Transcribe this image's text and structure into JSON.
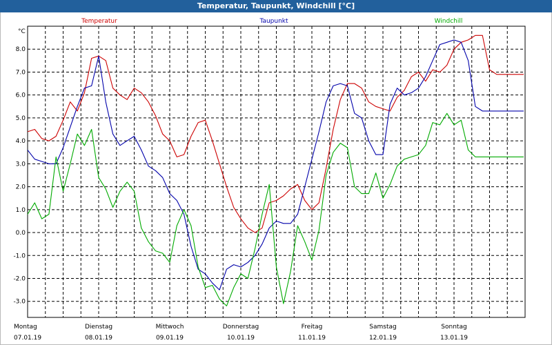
{
  "chart_data": {
    "type": "line",
    "title": "Temperatur, Taupunkt, Windchill [°C]",
    "ylabel": "°C",
    "ylim": [
      -3.7,
      9.0
    ],
    "y_ticks": [
      "8.0",
      "7.0",
      "6.0",
      "5.0",
      "4.0",
      "3.0",
      "2.0",
      "1.0",
      "0.0",
      "-1.0",
      "-2.0",
      "-3.0"
    ],
    "xlim": [
      0,
      7
    ],
    "grid": true,
    "days": [
      {
        "name": "Montag",
        "date": "07.01.19"
      },
      {
        "name": "Dienstag",
        "date": "08.01.19"
      },
      {
        "name": "Mittwoch",
        "date": "09.01.19"
      },
      {
        "name": "Donnerstag",
        "date": "10.01.19"
      },
      {
        "name": "Freitag",
        "date": "11.01.19"
      },
      {
        "name": "Samstag",
        "date": "12.01.19"
      },
      {
        "name": "Sonntag",
        "date": "13.01.19"
      }
    ],
    "series": [
      {
        "name": "Temperatur",
        "color": "#cc0000",
        "x": [
          0,
          0.1,
          0.2,
          0.3,
          0.4,
          0.5,
          0.6,
          0.7,
          0.8,
          0.9,
          1.0,
          1.1,
          1.2,
          1.3,
          1.4,
          1.5,
          1.6,
          1.7,
          1.8,
          1.9,
          2.0,
          2.1,
          2.2,
          2.3,
          2.4,
          2.5,
          2.6,
          2.7,
          2.8,
          2.9,
          3.0,
          3.1,
          3.2,
          3.3,
          3.4,
          3.5,
          3.6,
          3.7,
          3.8,
          3.9,
          4.0,
          4.1,
          4.2,
          4.3,
          4.4,
          4.5,
          4.6,
          4.7,
          4.8,
          4.9,
          5.0,
          5.1,
          5.2,
          5.3,
          5.4,
          5.5,
          5.6,
          5.7,
          5.8,
          5.9,
          6.0,
          6.1,
          6.2,
          6.3,
          6.4,
          6.5,
          6.6,
          6.7,
          6.8,
          6.9,
          6.98
        ],
        "values": [
          4.4,
          4.5,
          4.1,
          4.0,
          4.2,
          4.9,
          5.7,
          5.3,
          6.1,
          7.6,
          7.7,
          7.5,
          6.3,
          6.0,
          5.8,
          6.3,
          6.1,
          5.7,
          5.1,
          4.3,
          4.0,
          3.3,
          3.4,
          4.2,
          4.8,
          4.9,
          4.0,
          3.0,
          2.0,
          1.1,
          0.6,
          0.2,
          0.0,
          0.2,
          1.3,
          1.4,
          1.6,
          1.9,
          2.1,
          1.4,
          1.0,
          1.3,
          2.8,
          4.5,
          5.8,
          6.5,
          6.5,
          6.3,
          5.7,
          5.5,
          5.4,
          5.3,
          5.9,
          6.2,
          6.8,
          7.0,
          6.6,
          7.1,
          7.0,
          7.3,
          8.0,
          8.3,
          8.4,
          8.6,
          8.6,
          7.1,
          6.9,
          6.9,
          6.9,
          6.9,
          6.9
        ]
      },
      {
        "name": "Taupunkt",
        "color": "#0000aa",
        "x": [
          0,
          0.1,
          0.2,
          0.3,
          0.4,
          0.5,
          0.6,
          0.7,
          0.8,
          0.9,
          1.0,
          1.1,
          1.2,
          1.3,
          1.4,
          1.5,
          1.6,
          1.7,
          1.8,
          1.9,
          2.0,
          2.1,
          2.2,
          2.3,
          2.4,
          2.5,
          2.6,
          2.7,
          2.8,
          2.9,
          3.0,
          3.1,
          3.2,
          3.3,
          3.4,
          3.5,
          3.6,
          3.7,
          3.8,
          3.9,
          4.0,
          4.1,
          4.2,
          4.3,
          4.4,
          4.5,
          4.6,
          4.7,
          4.8,
          4.9,
          5.0,
          5.1,
          5.2,
          5.3,
          5.4,
          5.5,
          5.6,
          5.7,
          5.8,
          5.9,
          6.0,
          6.1,
          6.2,
          6.3,
          6.4,
          6.5,
          6.6,
          6.7,
          6.8,
          6.9,
          6.98
        ],
        "values": [
          3.6,
          3.2,
          3.1,
          3.0,
          3.0,
          3.7,
          4.6,
          5.5,
          6.3,
          6.4,
          7.7,
          5.7,
          4.3,
          3.8,
          4.0,
          4.2,
          3.6,
          2.9,
          2.7,
          2.4,
          1.7,
          1.4,
          0.8,
          -0.6,
          -1.6,
          -1.8,
          -2.2,
          -2.5,
          -1.6,
          -1.4,
          -1.5,
          -1.3,
          -1.0,
          -0.5,
          0.2,
          0.5,
          0.4,
          0.4,
          0.8,
          2.0,
          3.2,
          4.4,
          5.7,
          6.4,
          6.5,
          6.4,
          5.2,
          5.0,
          4.0,
          3.4,
          3.4,
          5.6,
          6.3,
          6.0,
          6.1,
          6.3,
          6.8,
          7.5,
          8.2,
          8.3,
          8.4,
          8.3,
          7.5,
          5.5,
          5.3,
          5.3,
          5.3,
          5.3,
          5.3,
          5.3,
          5.3
        ]
      },
      {
        "name": "Windchill",
        "color": "#00aa00",
        "x": [
          0,
          0.1,
          0.2,
          0.3,
          0.4,
          0.5,
          0.6,
          0.7,
          0.8,
          0.9,
          1.0,
          1.1,
          1.2,
          1.3,
          1.4,
          1.5,
          1.6,
          1.7,
          1.8,
          1.9,
          2.0,
          2.1,
          2.2,
          2.3,
          2.4,
          2.5,
          2.6,
          2.7,
          2.8,
          2.9,
          3.0,
          3.1,
          3.2,
          3.3,
          3.4,
          3.5,
          3.6,
          3.7,
          3.8,
          3.9,
          4.0,
          4.1,
          4.2,
          4.3,
          4.4,
          4.5,
          4.6,
          4.7,
          4.8,
          4.9,
          5.0,
          5.1,
          5.2,
          5.3,
          5.4,
          5.5,
          5.6,
          5.7,
          5.8,
          5.9,
          6.0,
          6.1,
          6.2,
          6.3,
          6.4,
          6.5,
          6.6,
          6.7,
          6.8,
          6.9,
          6.98
        ],
        "values": [
          0.8,
          1.3,
          0.6,
          0.8,
          3.3,
          1.8,
          3.0,
          4.3,
          3.8,
          4.5,
          2.4,
          1.9,
          1.1,
          1.8,
          2.2,
          1.8,
          0.2,
          -0.4,
          -0.8,
          -0.9,
          -1.3,
          0.3,
          1.0,
          0.3,
          -1.5,
          -2.4,
          -2.3,
          -2.9,
          -3.2,
          -2.4,
          -1.8,
          -2.0,
          -0.7,
          0.8,
          2.1,
          -1.5,
          -3.1,
          -1.7,
          0.3,
          -0.4,
          -1.2,
          0.1,
          2.5,
          3.5,
          3.9,
          3.7,
          2.0,
          1.7,
          1.7,
          2.6,
          1.5,
          2.1,
          2.9,
          3.2,
          3.3,
          3.4,
          3.8,
          4.8,
          4.7,
          5.2,
          4.7,
          4.9,
          3.6,
          3.3,
          3.3,
          3.3,
          3.3,
          3.3,
          3.3,
          3.3,
          3.3
        ]
      }
    ]
  }
}
